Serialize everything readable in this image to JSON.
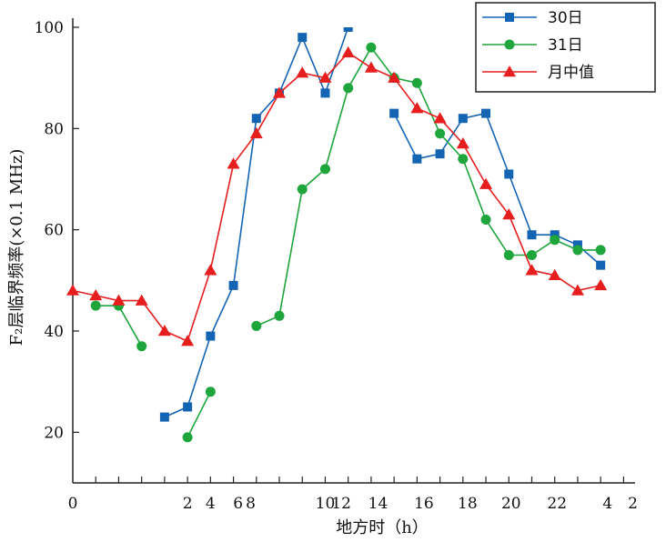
{
  "chart_data": {
    "type": "line",
    "xlabel": "地方时（h）",
    "ylabel": "F₂层临界频率(×0.1 MHz)",
    "x_ticks": [
      {
        "x": 0,
        "label": "0"
      },
      {
        "x": 5,
        "label": "2"
      },
      {
        "x": 6,
        "label": "4"
      },
      {
        "x": 7.2,
        "label": "6"
      },
      {
        "x": 7.75,
        "label": "8"
      },
      {
        "x": 11,
        "label": "10"
      },
      {
        "x": 11.7,
        "label": "12"
      },
      {
        "x": 13.3,
        "label": "14"
      },
      {
        "x": 15.3,
        "label": "16"
      },
      {
        "x": 17.2,
        "label": "18"
      },
      {
        "x": 19.1,
        "label": "20"
      },
      {
        "x": 21.1,
        "label": "22"
      },
      {
        "x": 23.3,
        "label": "4"
      },
      {
        "x": 24.4,
        "label": "2"
      }
    ],
    "minor_x": [
      1,
      2,
      3,
      4,
      5,
      6,
      7,
      8,
      9,
      10,
      11,
      12,
      13,
      14,
      15,
      16,
      17,
      18,
      19,
      20,
      21,
      22,
      23,
      24
    ],
    "xlim": [
      0,
      24.5
    ],
    "y_ticks": [
      20,
      40,
      60,
      80,
      100
    ],
    "ylim": [
      10,
      100
    ],
    "legend_position": "top-right",
    "series": [
      {
        "name": "30日",
        "color": "#1464b4",
        "marker": "square",
        "segments": [
          [
            [
              4,
              23
            ],
            [
              5,
              25
            ],
            [
              6,
              39
            ],
            [
              7,
              49
            ],
            [
              8,
              82
            ],
            [
              9,
              87
            ],
            [
              10,
              98
            ],
            [
              11,
              87
            ],
            [
              12,
              100
            ]
          ],
          [
            [
              14,
              83
            ],
            [
              15,
              74
            ],
            [
              16,
              75
            ],
            [
              17,
              82
            ],
            [
              18,
              83
            ],
            [
              19,
              71
            ],
            [
              20,
              59
            ],
            [
              21,
              59
            ],
            [
              22,
              57
            ],
            [
              23,
              53
            ]
          ]
        ]
      },
      {
        "name": "31日",
        "color": "#1ea53c",
        "marker": "circle",
        "segments": [
          [
            [
              1,
              45
            ],
            [
              2,
              45
            ],
            [
              3,
              37
            ]
          ],
          [
            [
              5,
              19
            ],
            [
              6,
              28
            ]
          ],
          [
            [
              8,
              41
            ],
            [
              9,
              43
            ],
            [
              10,
              68
            ],
            [
              11,
              72
            ],
            [
              12,
              88
            ],
            [
              13,
              96
            ],
            [
              14,
              90
            ],
            [
              15,
              89
            ],
            [
              16,
              79
            ],
            [
              17,
              74
            ],
            [
              18,
              62
            ],
            [
              19,
              55
            ],
            [
              20,
              55
            ],
            [
              21,
              58
            ],
            [
              22,
              56
            ],
            [
              23,
              56
            ]
          ]
        ]
      },
      {
        "name": "月中值",
        "color": "#e61e1e",
        "marker": "triangle",
        "segments": [
          [
            [
              0,
              48
            ],
            [
              1,
              47
            ],
            [
              2,
              46
            ],
            [
              3,
              46
            ],
            [
              4,
              40
            ],
            [
              5,
              38
            ],
            [
              6,
              52
            ],
            [
              7,
              73
            ],
            [
              8,
              79
            ],
            [
              9,
              87
            ],
            [
              10,
              91
            ],
            [
              11,
              90
            ],
            [
              12,
              95
            ],
            [
              13,
              92
            ],
            [
              14,
              90
            ],
            [
              15,
              84
            ],
            [
              16,
              82
            ],
            [
              17,
              77
            ],
            [
              18,
              69
            ],
            [
              19,
              63
            ],
            [
              20,
              52
            ],
            [
              21,
              51
            ],
            [
              22,
              48
            ],
            [
              23,
              49
            ]
          ]
        ]
      }
    ]
  }
}
